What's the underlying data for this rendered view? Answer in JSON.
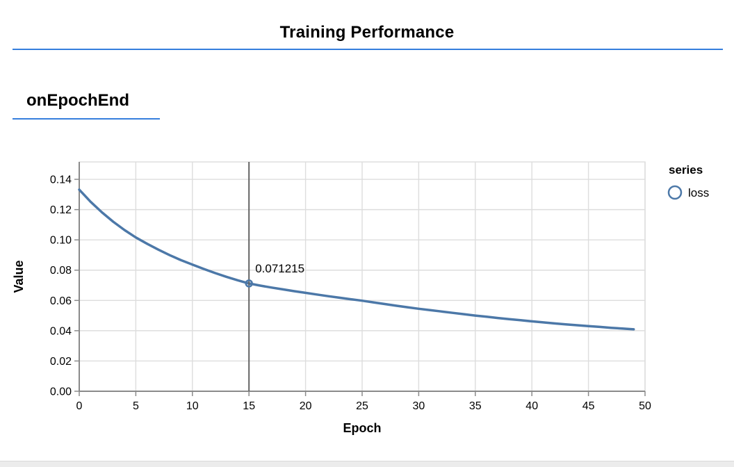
{
  "theme": {
    "accent_color": "#357edd",
    "series_color": "#4c78a8",
    "grid_color": "#dddddd",
    "axis_color": "#8a8a8a",
    "rule_color": "#646464",
    "text_color": "#000000",
    "scrollbar_color": "#ececec"
  },
  "header": {
    "title": "Training Performance"
  },
  "section": {
    "title": "onEpochEnd"
  },
  "chart_data": {
    "type": "line",
    "title": "",
    "xlabel": "Epoch",
    "ylabel": "Value",
    "xlim": [
      0,
      50
    ],
    "ylim": [
      0,
      0.1515
    ],
    "grid": true,
    "x_ticks": [
      0,
      5,
      10,
      15,
      20,
      25,
      30,
      35,
      40,
      45,
      50
    ],
    "y_ticks": [
      0,
      0.02,
      0.04,
      0.06,
      0.08,
      0.1,
      0.12,
      0.14
    ],
    "y_tick_labels": [
      "0.00",
      "0.02",
      "0.04",
      "0.06",
      "0.08",
      "0.10",
      "0.12",
      "0.14"
    ],
    "legend": {
      "title": "series",
      "position": "right",
      "items": [
        {
          "label": "loss",
          "marker": "open-circle"
        }
      ]
    },
    "series": [
      {
        "name": "loss",
        "x_start": 0,
        "x_step": 1,
        "values": [
          0.1332,
          0.1252,
          0.1182,
          0.112,
          0.1065,
          0.1016,
          0.0974,
          0.0935,
          0.0899,
          0.0866,
          0.0837,
          0.0808,
          0.0781,
          0.0756,
          0.0733,
          0.071215,
          0.0698,
          0.0685,
          0.0673,
          0.0661,
          0.065,
          0.0639,
          0.0628,
          0.0618,
          0.0608,
          0.0598,
          0.0587,
          0.0576,
          0.0565,
          0.0555,
          0.0545,
          0.0536,
          0.0527,
          0.0518,
          0.0509,
          0.05,
          0.0492,
          0.0484,
          0.0476,
          0.0469,
          0.0462,
          0.0455,
          0.0448,
          0.0442,
          0.0436,
          0.043,
          0.0425,
          0.0419,
          0.0414,
          0.0409
        ]
      }
    ],
    "highlight": {
      "x": 15,
      "value": 0.071215,
      "label": "0.071215"
    }
  }
}
